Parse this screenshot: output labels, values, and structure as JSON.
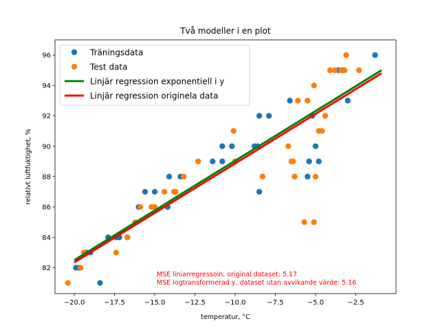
{
  "chart_data": {
    "type": "scatter",
    "title": "Två modeller i en plot",
    "xlabel": "temperatur, °C",
    "ylabel": "relativt luftfuktighet, %",
    "xlim": [
      -21.2,
      0.0
    ],
    "ylim": [
      80.3,
      97.0
    ],
    "xticks": [
      -20.0,
      -17.5,
      -15.0,
      -12.5,
      -10.0,
      -7.5,
      -5.0,
      -2.5
    ],
    "xtick_labels": [
      "−20.0",
      "−17.5",
      "−15.0",
      "−12.5",
      "−10.0",
      "−7.5",
      "−5.0",
      "−2.5"
    ],
    "yticks": [
      82,
      84,
      86,
      88,
      90,
      92,
      94,
      96
    ],
    "ytick_labels": [
      "82",
      "84",
      "86",
      "88",
      "90",
      "92",
      "94",
      "96"
    ],
    "grid": false,
    "legend_position": "top-left",
    "series": [
      {
        "name": "Träningsdata",
        "kind": "scatter",
        "color": "#1f77b4",
        "points": [
          [
            -19.9,
            82
          ],
          [
            -19.7,
            82
          ],
          [
            -19.2,
            83
          ],
          [
            -19.0,
            83
          ],
          [
            -18.4,
            81
          ],
          [
            -17.9,
            84
          ],
          [
            -17.4,
            84
          ],
          [
            -17.2,
            84
          ],
          [
            -16.7,
            84
          ],
          [
            -16.0,
            86
          ],
          [
            -15.6,
            87
          ],
          [
            -15.0,
            87
          ],
          [
            -14.2,
            86
          ],
          [
            -14.1,
            88
          ],
          [
            -13.4,
            88
          ],
          [
            -11.4,
            89
          ],
          [
            -10.8,
            89
          ],
          [
            -10.8,
            90
          ],
          [
            -10.2,
            90
          ],
          [
            -8.8,
            90
          ],
          [
            -8.6,
            90
          ],
          [
            -8.5,
            87
          ],
          [
            -8.5,
            92
          ],
          [
            -7.9,
            92
          ],
          [
            -6.6,
            93
          ],
          [
            -5.5,
            88
          ],
          [
            -5.4,
            89
          ],
          [
            -5.2,
            92
          ],
          [
            -5.0,
            90
          ],
          [
            -4.8,
            89
          ],
          [
            -3.6,
            95
          ],
          [
            -3.3,
            95
          ],
          [
            -3.0,
            93
          ],
          [
            -1.3,
            96
          ]
        ]
      },
      {
        "name": "Test data",
        "kind": "scatter",
        "color": "#ff7f0e",
        "points": [
          [
            -20.4,
            81
          ],
          [
            -19.6,
            82
          ],
          [
            -19.4,
            83
          ],
          [
            -17.4,
            83
          ],
          [
            -16.7,
            84
          ],
          [
            -16.2,
            85
          ],
          [
            -15.9,
            86
          ],
          [
            -15.2,
            86
          ],
          [
            -15.0,
            86
          ],
          [
            -14.4,
            87
          ],
          [
            -13.8,
            87
          ],
          [
            -13.7,
            87
          ],
          [
            -13.2,
            88
          ],
          [
            -12.3,
            89
          ],
          [
            -10.1,
            91
          ],
          [
            -10.0,
            89
          ],
          [
            -8.3,
            88
          ],
          [
            -6.7,
            90
          ],
          [
            -6.5,
            89
          ],
          [
            -6.4,
            89
          ],
          [
            -6.3,
            88
          ],
          [
            -6.1,
            93
          ],
          [
            -5.7,
            85
          ],
          [
            -5.5,
            93
          ],
          [
            -5.1,
            94
          ],
          [
            -5.1,
            85
          ],
          [
            -5.0,
            88
          ],
          [
            -4.8,
            91
          ],
          [
            -4.6,
            91
          ],
          [
            -4.4,
            92
          ],
          [
            -4.1,
            95
          ],
          [
            -3.8,
            95
          ],
          [
            -3.4,
            95
          ],
          [
            -3.2,
            95
          ],
          [
            -3.1,
            96
          ],
          [
            -2.3,
            95
          ]
        ]
      },
      {
        "name": "Linjär regression exponentiell i y",
        "kind": "line",
        "color": "#008000",
        "points": [
          [
            -20.0,
            82.5
          ],
          [
            -0.9,
            95.0
          ]
        ]
      },
      {
        "name": "Linjär regression originela data",
        "kind": "line",
        "color": "#ff0000",
        "points": [
          [
            -20.0,
            82.35
          ],
          [
            -0.9,
            94.8
          ]
        ]
      }
    ],
    "annotations": [
      "MSE liniarregressoin, original dataset: 5.17",
      "MSE logtransformerad y, dataset utan avvikande värde: 5.16"
    ],
    "annotation_color": "#ff0000"
  }
}
